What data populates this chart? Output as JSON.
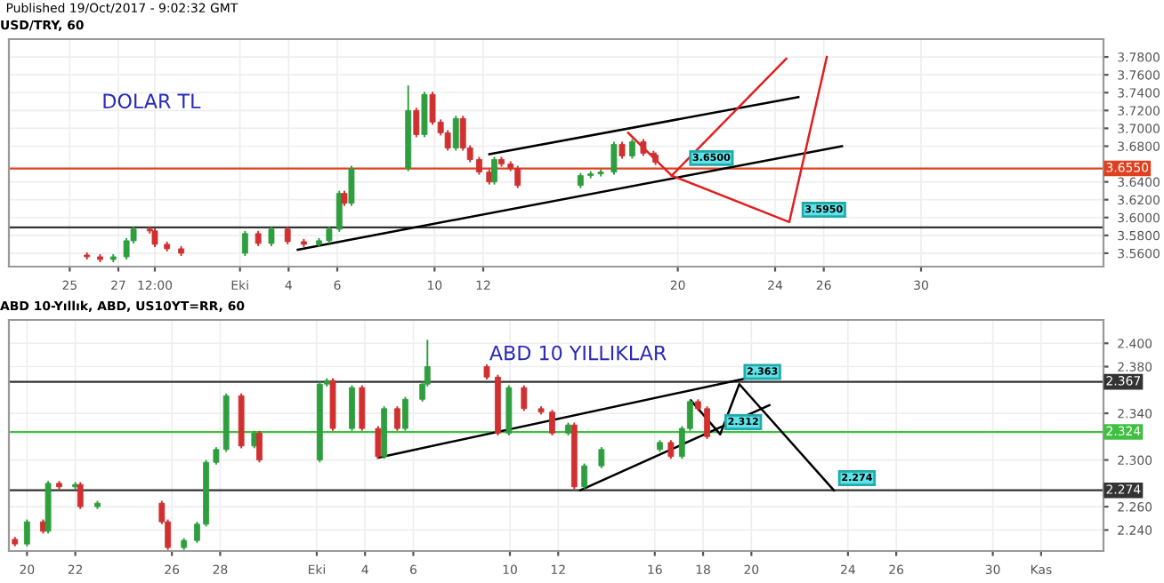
{
  "chart_data": [
    {
      "type": "candlestick",
      "title": "USD/TRY, 60",
      "annotations": [
        "Published 19/Oct/2017 - 9:02:32 GMT",
        "DOLAR TL",
        {
          "text": "3.6500",
          "x": "2017-10-20T07:00",
          "y": 3.653
        },
        {
          "text": "3.5950",
          "x": "2017-10-24T22:00",
          "y": 3.595
        }
      ],
      "x": [
        "2017-09-25T17:00",
        "2017-09-26T06:00",
        "2017-09-26T19:00",
        "2017-09-27T08:00",
        "2017-09-27T15:00",
        "2017-09-28T07:00",
        "2017-09-28T12:00",
        "2017-09-29T00:00",
        "2017-09-29T14:00",
        "2017-10-02T05:00",
        "2017-10-02T18:00",
        "2017-10-03T07:00",
        "2017-10-03T23:00",
        "2017-10-04T15:00",
        "2017-10-05T06:00",
        "2017-10-05T16:00",
        "2017-10-06T02:00",
        "2017-10-06T07:00",
        "2017-10-06T14:00",
        "2017-10-08T22:00",
        "2017-10-09T06:00",
        "2017-10-09T14:00",
        "2017-10-09T22:00",
        "2017-10-10T06:00",
        "2017-10-10T13:00",
        "2017-10-10T21:00",
        "2017-10-11T04:00",
        "2017-10-11T11:00",
        "2017-10-11T20:00",
        "2017-10-12T06:00",
        "2017-10-12T11:00",
        "2017-10-12T18:00",
        "2017-10-13T03:00",
        "2017-10-13T10:00",
        "2017-10-16T00:00",
        "2017-10-16T10:00",
        "2017-10-16T20:00",
        "2017-10-17T09:00",
        "2017-10-17T17:00",
        "2017-10-18T03:00",
        "2017-10-18T14:00",
        "2017-10-19T00:00",
        "2017-10-19T02:00"
      ],
      "ohlc": [
        [
          3.558,
          3.561,
          3.553,
          3.556
        ],
        [
          3.556,
          3.559,
          3.55,
          3.553
        ],
        [
          3.553,
          3.559,
          3.55,
          3.556
        ],
        [
          3.556,
          3.577,
          3.553,
          3.574
        ],
        [
          3.574,
          3.59,
          3.571,
          3.587
        ],
        [
          3.587,
          3.59,
          3.582,
          3.585
        ],
        [
          3.585,
          3.588,
          3.567,
          3.57
        ],
        [
          3.57,
          3.573,
          3.562,
          3.565
        ],
        [
          3.565,
          3.568,
          3.557,
          3.56
        ],
        [
          3.56,
          3.585,
          3.557,
          3.582
        ],
        [
          3.582,
          3.585,
          3.568,
          3.571
        ],
        [
          3.571,
          3.59,
          3.568,
          3.587
        ],
        [
          3.587,
          3.59,
          3.57,
          3.573
        ],
        [
          3.573,
          3.576,
          3.567,
          3.57
        ],
        [
          3.57,
          3.577,
          3.567,
          3.574
        ],
        [
          3.574,
          3.59,
          3.571,
          3.587
        ],
        [
          3.587,
          3.63,
          3.584,
          3.627
        ],
        [
          3.627,
          3.63,
          3.613,
          3.616
        ],
        [
          3.616,
          3.658,
          3.613,
          3.655
        ],
        [
          3.655,
          3.748,
          3.652,
          3.72
        ],
        [
          3.72,
          3.723,
          3.69,
          3.693
        ],
        [
          3.693,
          3.741,
          3.69,
          3.738
        ],
        [
          3.738,
          3.741,
          3.704,
          3.707
        ],
        [
          3.707,
          3.71,
          3.692,
          3.695
        ],
        [
          3.695,
          3.698,
          3.675,
          3.678
        ],
        [
          3.678,
          3.714,
          3.675,
          3.711
        ],
        [
          3.711,
          3.714,
          3.675,
          3.678
        ],
        [
          3.678,
          3.681,
          3.662,
          3.665
        ],
        [
          3.665,
          3.668,
          3.648,
          3.651
        ],
        [
          3.651,
          3.654,
          3.637,
          3.64
        ],
        [
          3.64,
          3.668,
          3.637,
          3.665
        ],
        [
          3.665,
          3.668,
          3.657,
          3.66
        ],
        [
          3.66,
          3.663,
          3.652,
          3.655
        ],
        [
          3.655,
          3.658,
          3.633,
          3.636
        ],
        [
          3.636,
          3.65,
          3.633,
          3.647
        ],
        [
          3.647,
          3.652,
          3.644,
          3.649
        ],
        [
          3.649,
          3.654,
          3.646,
          3.651
        ],
        [
          3.651,
          3.685,
          3.648,
          3.682
        ],
        [
          3.682,
          3.685,
          3.666,
          3.669
        ],
        [
          3.669,
          3.688,
          3.666,
          3.685
        ],
        [
          3.685,
          3.688,
          3.669,
          3.672
        ],
        [
          3.672,
          3.675,
          3.667,
          3.67
        ],
        [
          3.67,
          3.673,
          3.659,
          3.662
        ]
      ],
      "series": [
        {
          "type": "line",
          "color": "#000000",
          "x": [
            "2017-10-04T09:00",
            "2017-10-26T18:00"
          ],
          "values": [
            3.564,
            3.68
          ]
        },
        {
          "type": "line",
          "color": "#000000",
          "x": [
            "2017-10-12T06:00",
            "2017-10-24T23:00"
          ],
          "values": [
            3.671,
            3.735
          ]
        },
        {
          "type": "line",
          "color": "#e02020",
          "x": [
            "2017-10-17T23:00",
            "2017-10-19T18:00",
            "2017-10-24T11:00"
          ],
          "values": [
            3.695,
            3.647,
            3.778
          ]
        },
        {
          "type": "line",
          "color": "#e02020",
          "x": [
            "2017-10-19T18:00",
            "2017-10-24T14:00",
            "2017-10-26T03:00"
          ],
          "values": [
            3.647,
            3.595,
            3.78
          ]
        }
      ],
      "ref_lines": [
        {
          "axis": "y",
          "value": 3.655,
          "label": "3.6550",
          "color": "#e04020"
        },
        {
          "axis": "y",
          "value": 3.589,
          "color": "#333333"
        }
      ],
      "xlim": [
        "2017-09-22T12:00",
        "2017-11-06T12:00"
      ],
      "ylim": [
        3.545,
        3.8
      ],
      "xticks": [
        {
          "value": "2017-09-25",
          "label": "25"
        },
        {
          "value": "2017-09-27",
          "label": "27"
        },
        {
          "value": "2017-09-28T12:00",
          "label": "12:00"
        },
        {
          "value": "2017-10-02",
          "label": "Eki"
        },
        {
          "value": "2017-10-04",
          "label": "4"
        },
        {
          "value": "2017-10-06",
          "label": "6"
        },
        {
          "value": "2017-10-10",
          "label": "10"
        },
        {
          "value": "2017-10-12",
          "label": "12"
        },
        {
          "value": "2017-10-20",
          "label": "20"
        },
        {
          "value": "2017-10-24",
          "label": "24"
        },
        {
          "value": "2017-10-26",
          "label": "26"
        },
        {
          "value": "2017-10-30",
          "label": "30"
        }
      ],
      "yticks": [
        {
          "value": 3.56,
          "label": "3.5600"
        },
        {
          "value": 3.58,
          "label": "3.5800"
        },
        {
          "value": 3.6,
          "label": "3.6000"
        },
        {
          "value": 3.62,
          "label": "3.6200"
        },
        {
          "value": 3.64,
          "label": "3.6400"
        },
        {
          "value": 3.68,
          "label": "3.6800"
        },
        {
          "value": 3.7,
          "label": "3.7000"
        },
        {
          "value": 3.72,
          "label": "3.7200"
        },
        {
          "value": 3.74,
          "label": "3.7400"
        },
        {
          "value": 3.76,
          "label": "3.7600"
        },
        {
          "value": 3.78,
          "label": "3.7800"
        }
      ],
      "grid": true
    },
    {
      "type": "candlestick",
      "title": "ABD 10-Yıllık, ABD, US10YT=RR, 60",
      "annotations": [
        "ABD 10 YILLIKLAR",
        {
          "text": "2.363",
          "x": "2017-10-19T12:00",
          "y": 2.365
        },
        {
          "text": "2.312",
          "x": "2017-10-18T17:00",
          "y": 2.322
        },
        {
          "text": "2.274",
          "x": "2017-10-23T10:00",
          "y": 2.274
        }
      ],
      "x": [
        "2017-09-19T12:00",
        "2017-09-20T00:00",
        "2017-09-20T16:00",
        "2017-09-20T21:00",
        "2017-09-21T08:00",
        "2017-09-22T00:00",
        "2017-09-22T05:00",
        "2017-09-22T22:00",
        "2017-09-25T14:00",
        "2017-09-25T20:00",
        "2017-09-26T12:00",
        "2017-09-27T01:00",
        "2017-09-27T10:00",
        "2017-09-27T20:00",
        "2017-09-28T06:00",
        "2017-09-28T21:00",
        "2017-09-29T10:00",
        "2017-09-29T15:00",
        "2017-10-02T03:00",
        "2017-10-02T10:00",
        "2017-10-02T16:00",
        "2017-10-03T11:00",
        "2017-10-03T21:00",
        "2017-10-04T13:00",
        "2017-10-04T19:00",
        "2017-10-05T08:00",
        "2017-10-05T16:00",
        "2017-10-06T09:00",
        "2017-10-06T14:00",
        "2017-10-09T01:00",
        "2017-10-09T12:00",
        "2017-10-09T23:00",
        "2017-10-10T14:00",
        "2017-10-11T07:00",
        "2017-10-11T18:00",
        "2017-10-12T10:00",
        "2017-10-12T16:00",
        "2017-10-13T02:00",
        "2017-10-13T19:00",
        "2017-10-16T05:00",
        "2017-10-16T16:00",
        "2017-10-17T03:00",
        "2017-10-17T11:00",
        "2017-10-17T19:00",
        "2017-10-18T04:00"
      ],
      "ohlc": [
        [
          2.232,
          2.234,
          2.226,
          2.228
        ],
        [
          2.228,
          2.249,
          2.226,
          2.247
        ],
        [
          2.247,
          2.249,
          2.237,
          2.239
        ],
        [
          2.239,
          2.282,
          2.237,
          2.28
        ],
        [
          2.28,
          2.282,
          2.275,
          2.277
        ],
        [
          2.277,
          2.281,
          2.275,
          2.279
        ],
        [
          2.279,
          2.281,
          2.258,
          2.26
        ],
        [
          2.26,
          2.265,
          2.258,
          2.263
        ],
        [
          2.263,
          2.265,
          2.245,
          2.247
        ],
        [
          2.247,
          2.249,
          2.223,
          2.225
        ],
        [
          2.225,
          2.233,
          2.223,
          2.231
        ],
        [
          2.231,
          2.247,
          2.229,
          2.245
        ],
        [
          2.245,
          2.3,
          2.243,
          2.298
        ],
        [
          2.298,
          2.311,
          2.296,
          2.309
        ],
        [
          2.309,
          2.357,
          2.307,
          2.355
        ],
        [
          2.355,
          2.357,
          2.31,
          2.312
        ],
        [
          2.312,
          2.325,
          2.31,
          2.323
        ],
        [
          2.323,
          2.325,
          2.298,
          2.3
        ],
        [
          2.3,
          2.367,
          2.298,
          2.365
        ],
        [
          2.365,
          2.37,
          2.363,
          2.368
        ],
        [
          2.368,
          2.37,
          2.325,
          2.327
        ],
        [
          2.327,
          2.364,
          2.325,
          2.362
        ],
        [
          2.362,
          2.364,
          2.325,
          2.327
        ],
        [
          2.327,
          2.329,
          2.301,
          2.303
        ],
        [
          2.303,
          2.346,
          2.301,
          2.344
        ],
        [
          2.344,
          2.346,
          2.325,
          2.327
        ],
        [
          2.327,
          2.354,
          2.325,
          2.352
        ],
        [
          2.352,
          2.367,
          2.35,
          2.365
        ],
        [
          2.365,
          2.403,
          2.363,
          2.38
        ],
        [
          2.38,
          2.382,
          2.369,
          2.371
        ],
        [
          2.371,
          2.373,
          2.321,
          2.323
        ],
        [
          2.323,
          2.364,
          2.321,
          2.362
        ],
        [
          2.362,
          2.364,
          2.342,
          2.344
        ],
        [
          2.344,
          2.346,
          2.339,
          2.341
        ],
        [
          2.341,
          2.343,
          2.321,
          2.323
        ],
        [
          2.323,
          2.332,
          2.321,
          2.33
        ],
        [
          2.33,
          2.332,
          2.275,
          2.277
        ],
        [
          2.277,
          2.297,
          2.275,
          2.295
        ],
        [
          2.295,
          2.311,
          2.293,
          2.309
        ],
        [
          2.309,
          2.317,
          2.307,
          2.315
        ],
        [
          2.315,
          2.317,
          2.301,
          2.303
        ],
        [
          2.303,
          2.329,
          2.301,
          2.327
        ],
        [
          2.327,
          2.352,
          2.325,
          2.35
        ],
        [
          2.35,
          2.352,
          2.342,
          2.344
        ],
        [
          2.344,
          2.346,
          2.318,
          2.32
        ]
      ],
      "series": [
        {
          "type": "line",
          "color": "#000000",
          "x": [
            "2017-10-04T13:00",
            "2017-10-20T06:00"
          ],
          "values": [
            2.302,
            2.372
          ]
        },
        {
          "type": "line",
          "color": "#000000",
          "x": [
            "2017-10-12T22:00",
            "2017-10-20T18:00"
          ],
          "values": [
            2.274,
            2.347
          ]
        },
        {
          "type": "line",
          "color": "#000000",
          "x": [
            "2017-10-17T12:00",
            "2017-10-18T17:00",
            "2017-10-19T12:00",
            "2017-10-23T10:00"
          ],
          "values": [
            2.351,
            2.322,
            2.365,
            2.274
          ]
        }
      ],
      "ref_lines": [
        {
          "axis": "y",
          "value": 2.367,
          "label": "2.367",
          "color": "#333333"
        },
        {
          "axis": "y",
          "value": 2.324,
          "label": "2.324",
          "color": "#40c040"
        },
        {
          "axis": "y",
          "value": 2.274,
          "label": "2.274",
          "color": "#333333"
        }
      ],
      "xlim": [
        "2017-09-19T06:00",
        "2017-11-03T14:00"
      ],
      "ylim": [
        2.222,
        2.42
      ],
      "xticks": [
        {
          "value": "2017-09-20",
          "label": "20"
        },
        {
          "value": "2017-09-22",
          "label": "22"
        },
        {
          "value": "2017-09-26",
          "label": "26"
        },
        {
          "value": "2017-09-28",
          "label": "28"
        },
        {
          "value": "2017-10-02",
          "label": "Eki"
        },
        {
          "value": "2017-10-04",
          "label": "4"
        },
        {
          "value": "2017-10-06",
          "label": "6"
        },
        {
          "value": "2017-10-10",
          "label": "10"
        },
        {
          "value": "2017-10-12",
          "label": "12"
        },
        {
          "value": "2017-10-16",
          "label": "16"
        },
        {
          "value": "2017-10-18",
          "label": "18"
        },
        {
          "value": "2017-10-20",
          "label": "20"
        },
        {
          "value": "2017-10-24",
          "label": "24"
        },
        {
          "value": "2017-10-26",
          "label": "26"
        },
        {
          "value": "2017-10-30",
          "label": "30"
        },
        {
          "value": "2017-11-01",
          "label": "Kas"
        }
      ],
      "yticks": [
        {
          "value": 2.24,
          "label": "2.240"
        },
        {
          "value": 2.26,
          "label": "2.260"
        },
        {
          "value": 2.3,
          "label": "2.300"
        },
        {
          "value": 2.34,
          "label": "2.340"
        },
        {
          "value": 2.38,
          "label": "2.380"
        },
        {
          "value": 2.4,
          "label": "2.400"
        }
      ],
      "grid": true
    }
  ]
}
